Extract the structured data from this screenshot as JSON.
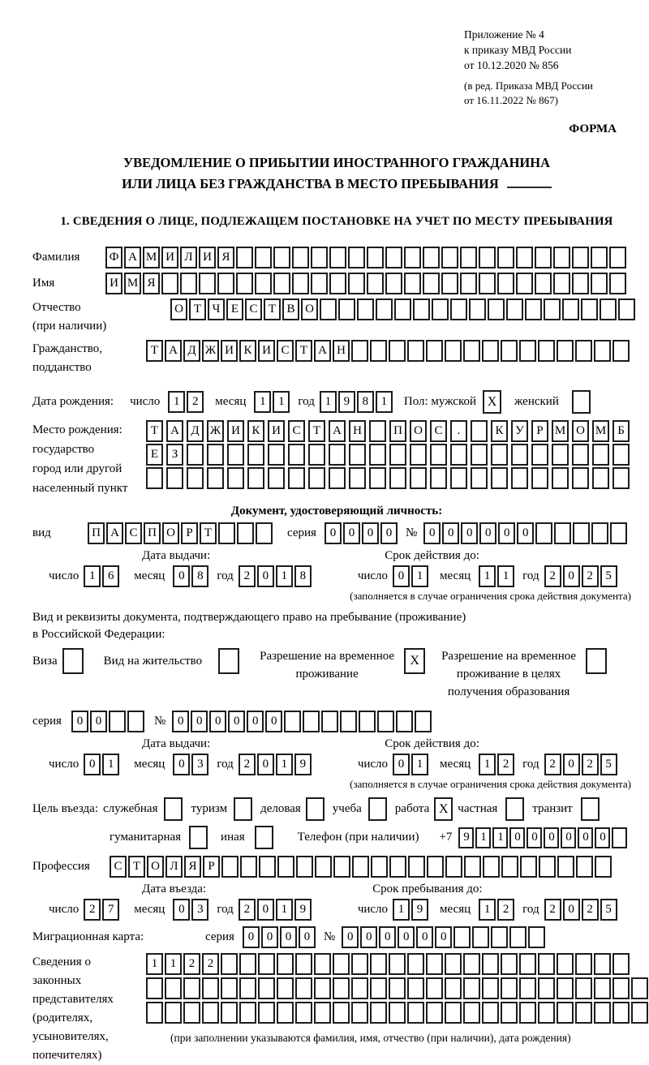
{
  "header": {
    "annex": [
      "Приложение № 4",
      "к приказу МВД России",
      "от 10.12.2020 № 856"
    ],
    "annex_note": [
      "(в ред. Приказа МВД России",
      "от 16.11.2022 № 867)"
    ],
    "forma": "ФОРМА"
  },
  "title": {
    "line1": "УВЕДОМЛЕНИЕ О ПРИБЫТИИ ИНОСТРАННОГО ГРАЖДАНИНА",
    "line2": "ИЛИ ЛИЦА БЕЗ ГРАЖДАНСТВА В МЕСТО ПРЕБЫВАНИЯ"
  },
  "section1_heading": "1. СВЕДЕНИЯ О ЛИЦЕ, ПОДЛЕЖАЩЕМ ПОСТАНОВКЕ НА УЧЕТ ПО МЕСТУ ПРЕБЫВАНИЯ",
  "labels": {
    "day": "число",
    "month": "месяц",
    "year": "год",
    "series": "серия",
    "number": "№"
  },
  "surname": {
    "label": "Фамилия",
    "cells": {
      "text": "ФАМИЛИЯ",
      "count": 28
    }
  },
  "firstname": {
    "label": "Имя",
    "cells": {
      "text": "ИМЯ",
      "count": 28
    }
  },
  "patronymic": {
    "label": "Отчество",
    "label2": "(при наличии)",
    "cells": {
      "text": "ОТЧЕСТВО",
      "count": 25
    }
  },
  "citizenship": {
    "label": "Гражданство,",
    "label2": "подданство",
    "cells": {
      "text": "ТАДЖИКИСТАН",
      "count": 26
    }
  },
  "birthdate": {
    "label": "Дата рождения:",
    "day": "12",
    "month": "11",
    "year": "1981",
    "sex_label": "Пол: мужской",
    "male_check": "X",
    "female_label": "женский",
    "female_check": ""
  },
  "birthplace": {
    "label": "Место рождения:",
    "label2": "государство",
    "label3": "город или другой",
    "label4": "населенный пункт",
    "row1": {
      "text": "ТАДЖИКИСТАН ПОС. КУРМОМБ",
      "count": 24
    },
    "row2": {
      "text": "ЕЗ",
      "count": 24
    },
    "row3": {
      "text": "",
      "count": 24
    }
  },
  "iddoc": {
    "heading": "Документ, удостоверяющий личность:",
    "kind_label": "вид",
    "kind": {
      "text": "ПАСПОРТ",
      "count": 10
    },
    "series": {
      "text": "0000",
      "count": 4
    },
    "number": {
      "text": "000000",
      "count": 11
    }
  },
  "iddoc_dates": {
    "head_left": "Дата выдачи:",
    "head_right": "Срок действия до:",
    "left": {
      "d": "16",
      "m": "08",
      "y": "2018"
    },
    "right": {
      "d": "01",
      "m": "11",
      "y": "2025"
    },
    "note": "(заполняется в случае ограничения срока действия документа)"
  },
  "permit": {
    "intro1": "Вид и реквизиты документа, подтверждающего право на пребывание (проживание)",
    "intro2": "в Российской Федерации:",
    "visa_label": "Виза",
    "visa_check": "",
    "residence_label": "Вид на жительство",
    "residence_check": "",
    "temp_label1": "Разрешение на временное",
    "temp_label2": "проживание",
    "temp_check": "X",
    "edu_label1": "Разрешение на временное",
    "edu_label2": "проживание в целях",
    "edu_label3": "получения образования",
    "edu_check": ""
  },
  "permit_doc": {
    "series": {
      "text": "00",
      "count": 4
    },
    "number": {
      "text": "000000",
      "count": 14
    }
  },
  "permit_dates": {
    "head_left": "Дата выдачи:",
    "head_right": "Срок действия до:",
    "left": {
      "d": "01",
      "m": "03",
      "y": "2019"
    },
    "right": {
      "d": "01",
      "m": "12",
      "y": "2025"
    },
    "note": "(заполняется в случае ограничения срока действия документа)"
  },
  "purpose": {
    "label": "Цель въезда:",
    "items": [
      {
        "label": "служебная",
        "check": ""
      },
      {
        "label": "туризм",
        "check": ""
      },
      {
        "label": "деловая",
        "check": ""
      },
      {
        "label": "учеба",
        "check": ""
      },
      {
        "label": "работа",
        "check": "X"
      },
      {
        "label": "частная",
        "check": ""
      },
      {
        "label": "транзит",
        "check": ""
      }
    ],
    "row2": [
      {
        "label": "гуманитарная",
        "check": ""
      },
      {
        "label": "иная",
        "check": ""
      }
    ],
    "phone_label": "Телефон (при наличии)",
    "phone_prefix": "+7",
    "phone": {
      "text": "911000000",
      "count": 10
    }
  },
  "profession": {
    "label": "Профессия",
    "cells": {
      "text": "СТОЛЯР",
      "count": 27
    }
  },
  "entry_dates": {
    "head_left": "Дата въезда:",
    "head_right": "Срок пребывания до:",
    "left": {
      "d": "27",
      "m": "03",
      "y": "2019"
    },
    "right": {
      "d": "19",
      "m": "12",
      "y": "2025"
    }
  },
  "migration_card": {
    "label": "Миграционная карта:",
    "series": {
      "text": "0000",
      "count": 4
    },
    "number": {
      "text": "000000",
      "count": 11
    }
  },
  "representatives": {
    "label_lines": [
      "Сведения о",
      "законных",
      "представителях",
      "(родителях,",
      "усыновителях,",
      "попечителях)"
    ],
    "row1": {
      "text": "1122",
      "count": 26
    },
    "row2": {
      "text": "",
      "count": 27
    },
    "row3": {
      "text": "",
      "count": 27
    },
    "note": "(при заполнении указываются фамилия, имя, отчество (при наличии), дата рождения)"
  }
}
